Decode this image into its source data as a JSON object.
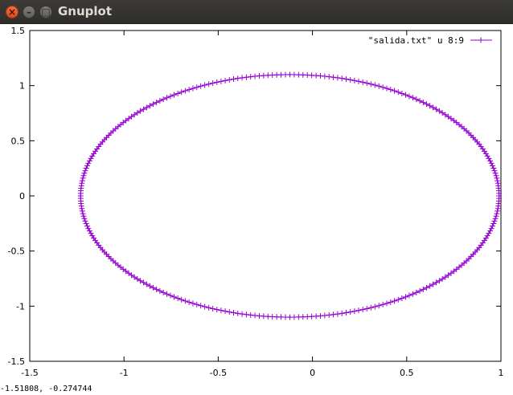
{
  "window": {
    "title": "Gnuplot",
    "close_glyph": "×",
    "minimize_glyph": "–",
    "maximize_glyph": "□"
  },
  "status": {
    "coordinates": "-1.51808, -0.274744"
  },
  "chart_data": {
    "type": "scatter",
    "title": "",
    "xlabel": "",
    "ylabel": "",
    "xlim": [
      -1.5,
      1.0
    ],
    "ylim": [
      -1.5,
      1.5
    ],
    "x_ticks": [
      -1.5,
      -1,
      -0.5,
      0,
      0.5,
      1
    ],
    "x_tick_labels": [
      "-1.5",
      "-1",
      "-0.5",
      "0",
      "0.5",
      "1"
    ],
    "y_ticks": [
      -1.5,
      -1,
      -0.5,
      0,
      0.5,
      1,
      1.5
    ],
    "y_tick_labels": [
      "-1.5",
      "-1",
      "-0.5",
      "0",
      "0.5",
      "1",
      "1.5"
    ],
    "grid": false,
    "legend_position": "top-right",
    "series": [
      {
        "name": "\"salida.txt\" u 8:9",
        "color": "#9400d3",
        "marker": "plus",
        "line": true,
        "curve": {
          "shape": "ellipse",
          "center_x": -0.12,
          "center_y": 0.0,
          "semi_axis_x": 1.11,
          "semi_axis_y": 1.1,
          "point_count": 300
        }
      }
    ]
  }
}
